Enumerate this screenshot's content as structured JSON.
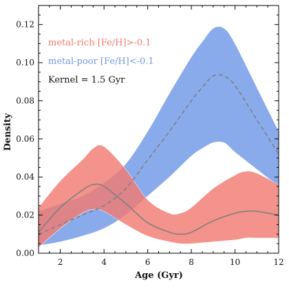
{
  "chart_data": {
    "type": "area",
    "title": "",
    "xlabel": "Age (Gyr)",
    "ylabel": "Density",
    "xlim": [
      1,
      12
    ],
    "ylim": [
      0,
      0.13
    ],
    "xticks": [
      2,
      4,
      6,
      8,
      10,
      12
    ],
    "yticks": [
      0.0,
      0.02,
      0.04,
      0.06,
      0.08,
      0.1,
      0.12
    ],
    "xtick_labels": [
      "2",
      "4",
      "6",
      "8",
      "10",
      "12"
    ],
    "ytick_labels": [
      "0.00",
      "0.02",
      "0.04",
      "0.06",
      "0.08",
      "0.10",
      "0.12"
    ],
    "grid": false,
    "legend_position": "top-left",
    "annotation": "Kernel = 1.5 Gyr",
    "series": [
      {
        "name": "metal-poor [Fe/H]<-0.1",
        "color": "#6f97e6",
        "line_style": "dashed",
        "line_color": "#7d7d7d",
        "x": [
          1,
          2,
          3,
          4,
          5,
          6,
          7,
          8,
          8.5,
          9,
          9.5,
          10,
          11,
          12
        ],
        "median": [
          0.01,
          0.015,
          0.02,
          0.025,
          0.034,
          0.049,
          0.064,
          0.08,
          0.087,
          0.093,
          0.093,
          0.088,
          0.07,
          0.052
        ],
        "lower": [
          0.004,
          0.006,
          0.009,
          0.013,
          0.02,
          0.03,
          0.04,
          0.051,
          0.055,
          0.058,
          0.058,
          0.053,
          0.044,
          0.035
        ],
        "upper": [
          0.022,
          0.026,
          0.03,
          0.037,
          0.047,
          0.064,
          0.084,
          0.103,
          0.111,
          0.118,
          0.118,
          0.11,
          0.087,
          0.064
        ]
      },
      {
        "name": "metal-rich [Fe/H]>-0.1",
        "color": "#f07b72",
        "line_style": "solid",
        "line_color": "#7d7d7d",
        "x": [
          1,
          2,
          3,
          3.5,
          4,
          5,
          6,
          7,
          7.5,
          8,
          9,
          10,
          10.5,
          11,
          12
        ],
        "median": [
          0.011,
          0.024,
          0.033,
          0.036,
          0.035,
          0.026,
          0.016,
          0.011,
          0.01,
          0.011,
          0.017,
          0.021,
          0.022,
          0.022,
          0.02
        ],
        "lower": [
          0.003,
          0.013,
          0.021,
          0.023,
          0.022,
          0.015,
          0.009,
          0.006,
          0.005,
          0.005,
          0.006,
          0.007,
          0.008,
          0.008,
          0.008
        ],
        "upper": [
          0.024,
          0.038,
          0.049,
          0.055,
          0.056,
          0.044,
          0.028,
          0.021,
          0.021,
          0.024,
          0.034,
          0.041,
          0.043,
          0.042,
          0.036
        ]
      }
    ]
  }
}
